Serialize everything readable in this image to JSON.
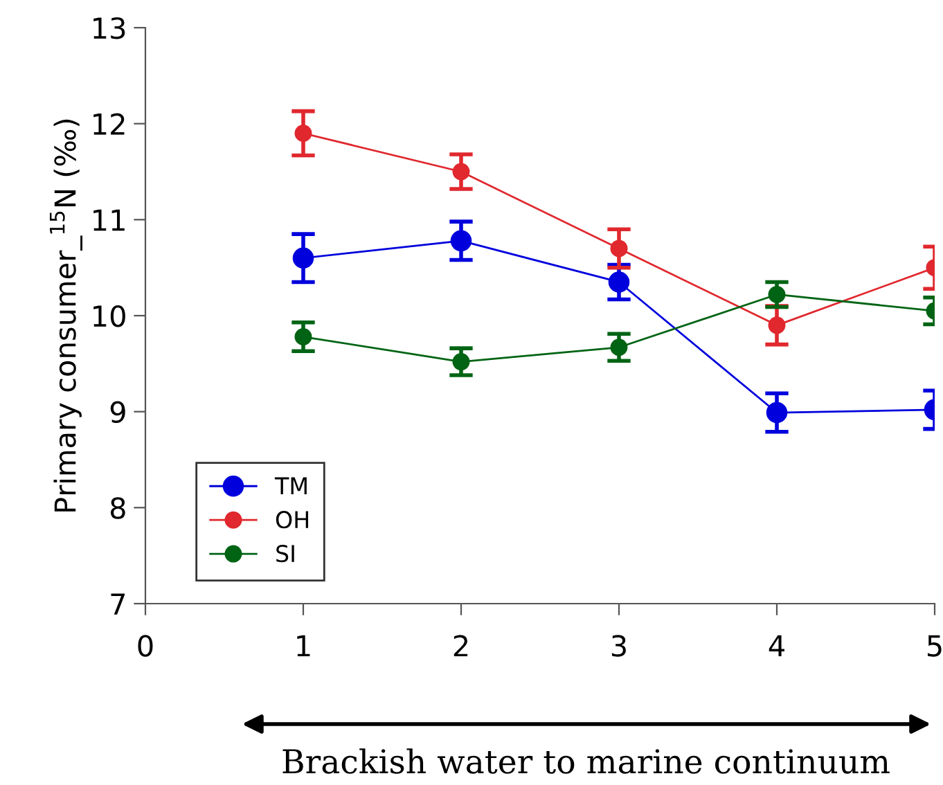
{
  "chart_data": {
    "type": "line",
    "ylabel": "Primary consumer_$^{15}$N (‰)",
    "annotations": [
      "Brackish water to marine continuum"
    ],
    "x": [
      1,
      2,
      3,
      4,
      5
    ],
    "xlim": [
      0,
      5
    ],
    "xticks": [
      0,
      1,
      2,
      3,
      4,
      5
    ],
    "ylim": [
      7,
      13
    ],
    "yticks": [
      7,
      8,
      9,
      10,
      11,
      12,
      13
    ],
    "grid": false,
    "legend": "bottom left",
    "marker": "circle",
    "line_style": "solid",
    "series": [
      {
        "name": "TM",
        "color": "#0000dd",
        "values": [
          10.6,
          10.78,
          10.35,
          8.99,
          9.02
        ],
        "errors": [
          0.25,
          0.2,
          0.18,
          0.2,
          0.2
        ]
      },
      {
        "name": "OH",
        "color": "#e0282e",
        "values": [
          11.9,
          11.5,
          10.7,
          9.9,
          10.5
        ],
        "errors": [
          0.23,
          0.18,
          0.2,
          0.2,
          0.22
        ]
      },
      {
        "name": "SI",
        "color": "#006414",
        "values": [
          9.78,
          9.52,
          9.67,
          10.22,
          10.05
        ],
        "errors": [
          0.15,
          0.14,
          0.14,
          0.13,
          0.14
        ]
      }
    ]
  }
}
